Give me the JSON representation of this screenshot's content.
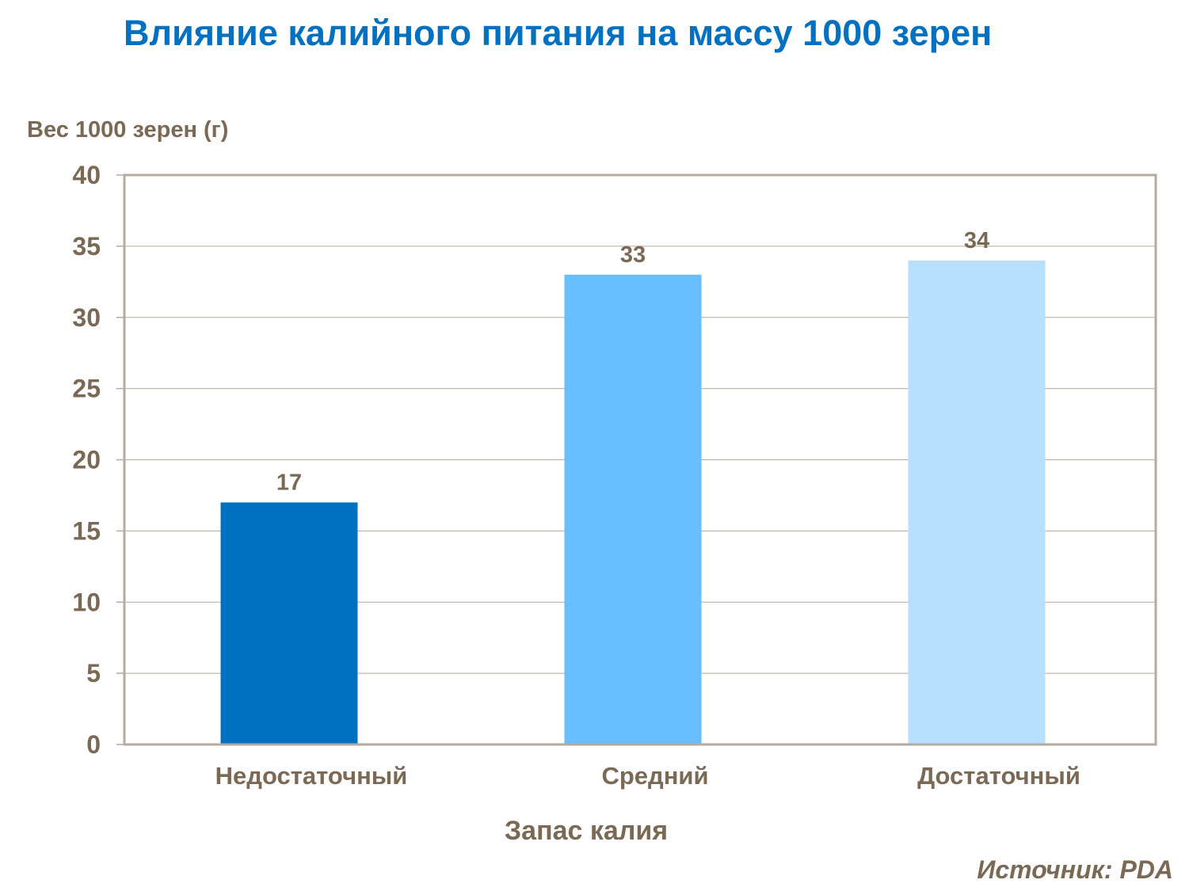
{
  "chart_data": {
    "type": "bar",
    "title": "Влияние калийного питания на массу 1000 зерен",
    "ylabel": "Вес 1000 зерен (г)",
    "xlabel": "Запас калия",
    "categories": [
      "Недостаточный",
      "Средний",
      "Достаточный"
    ],
    "values": [
      17,
      33,
      34
    ],
    "data_labels": [
      "17",
      "33",
      "34"
    ],
    "bar_colors": [
      "#0070C0",
      "#69BEFF",
      "#B9DFFF"
    ],
    "ylim": [
      0,
      40
    ],
    "yticks": [
      0,
      5,
      10,
      15,
      20,
      25,
      30,
      35,
      40
    ],
    "grid": true,
    "source": "Источник: PDA"
  },
  "colors": {
    "title": "#0070C0",
    "text": "#7A6A55",
    "axis": "#B4AAA0"
  }
}
